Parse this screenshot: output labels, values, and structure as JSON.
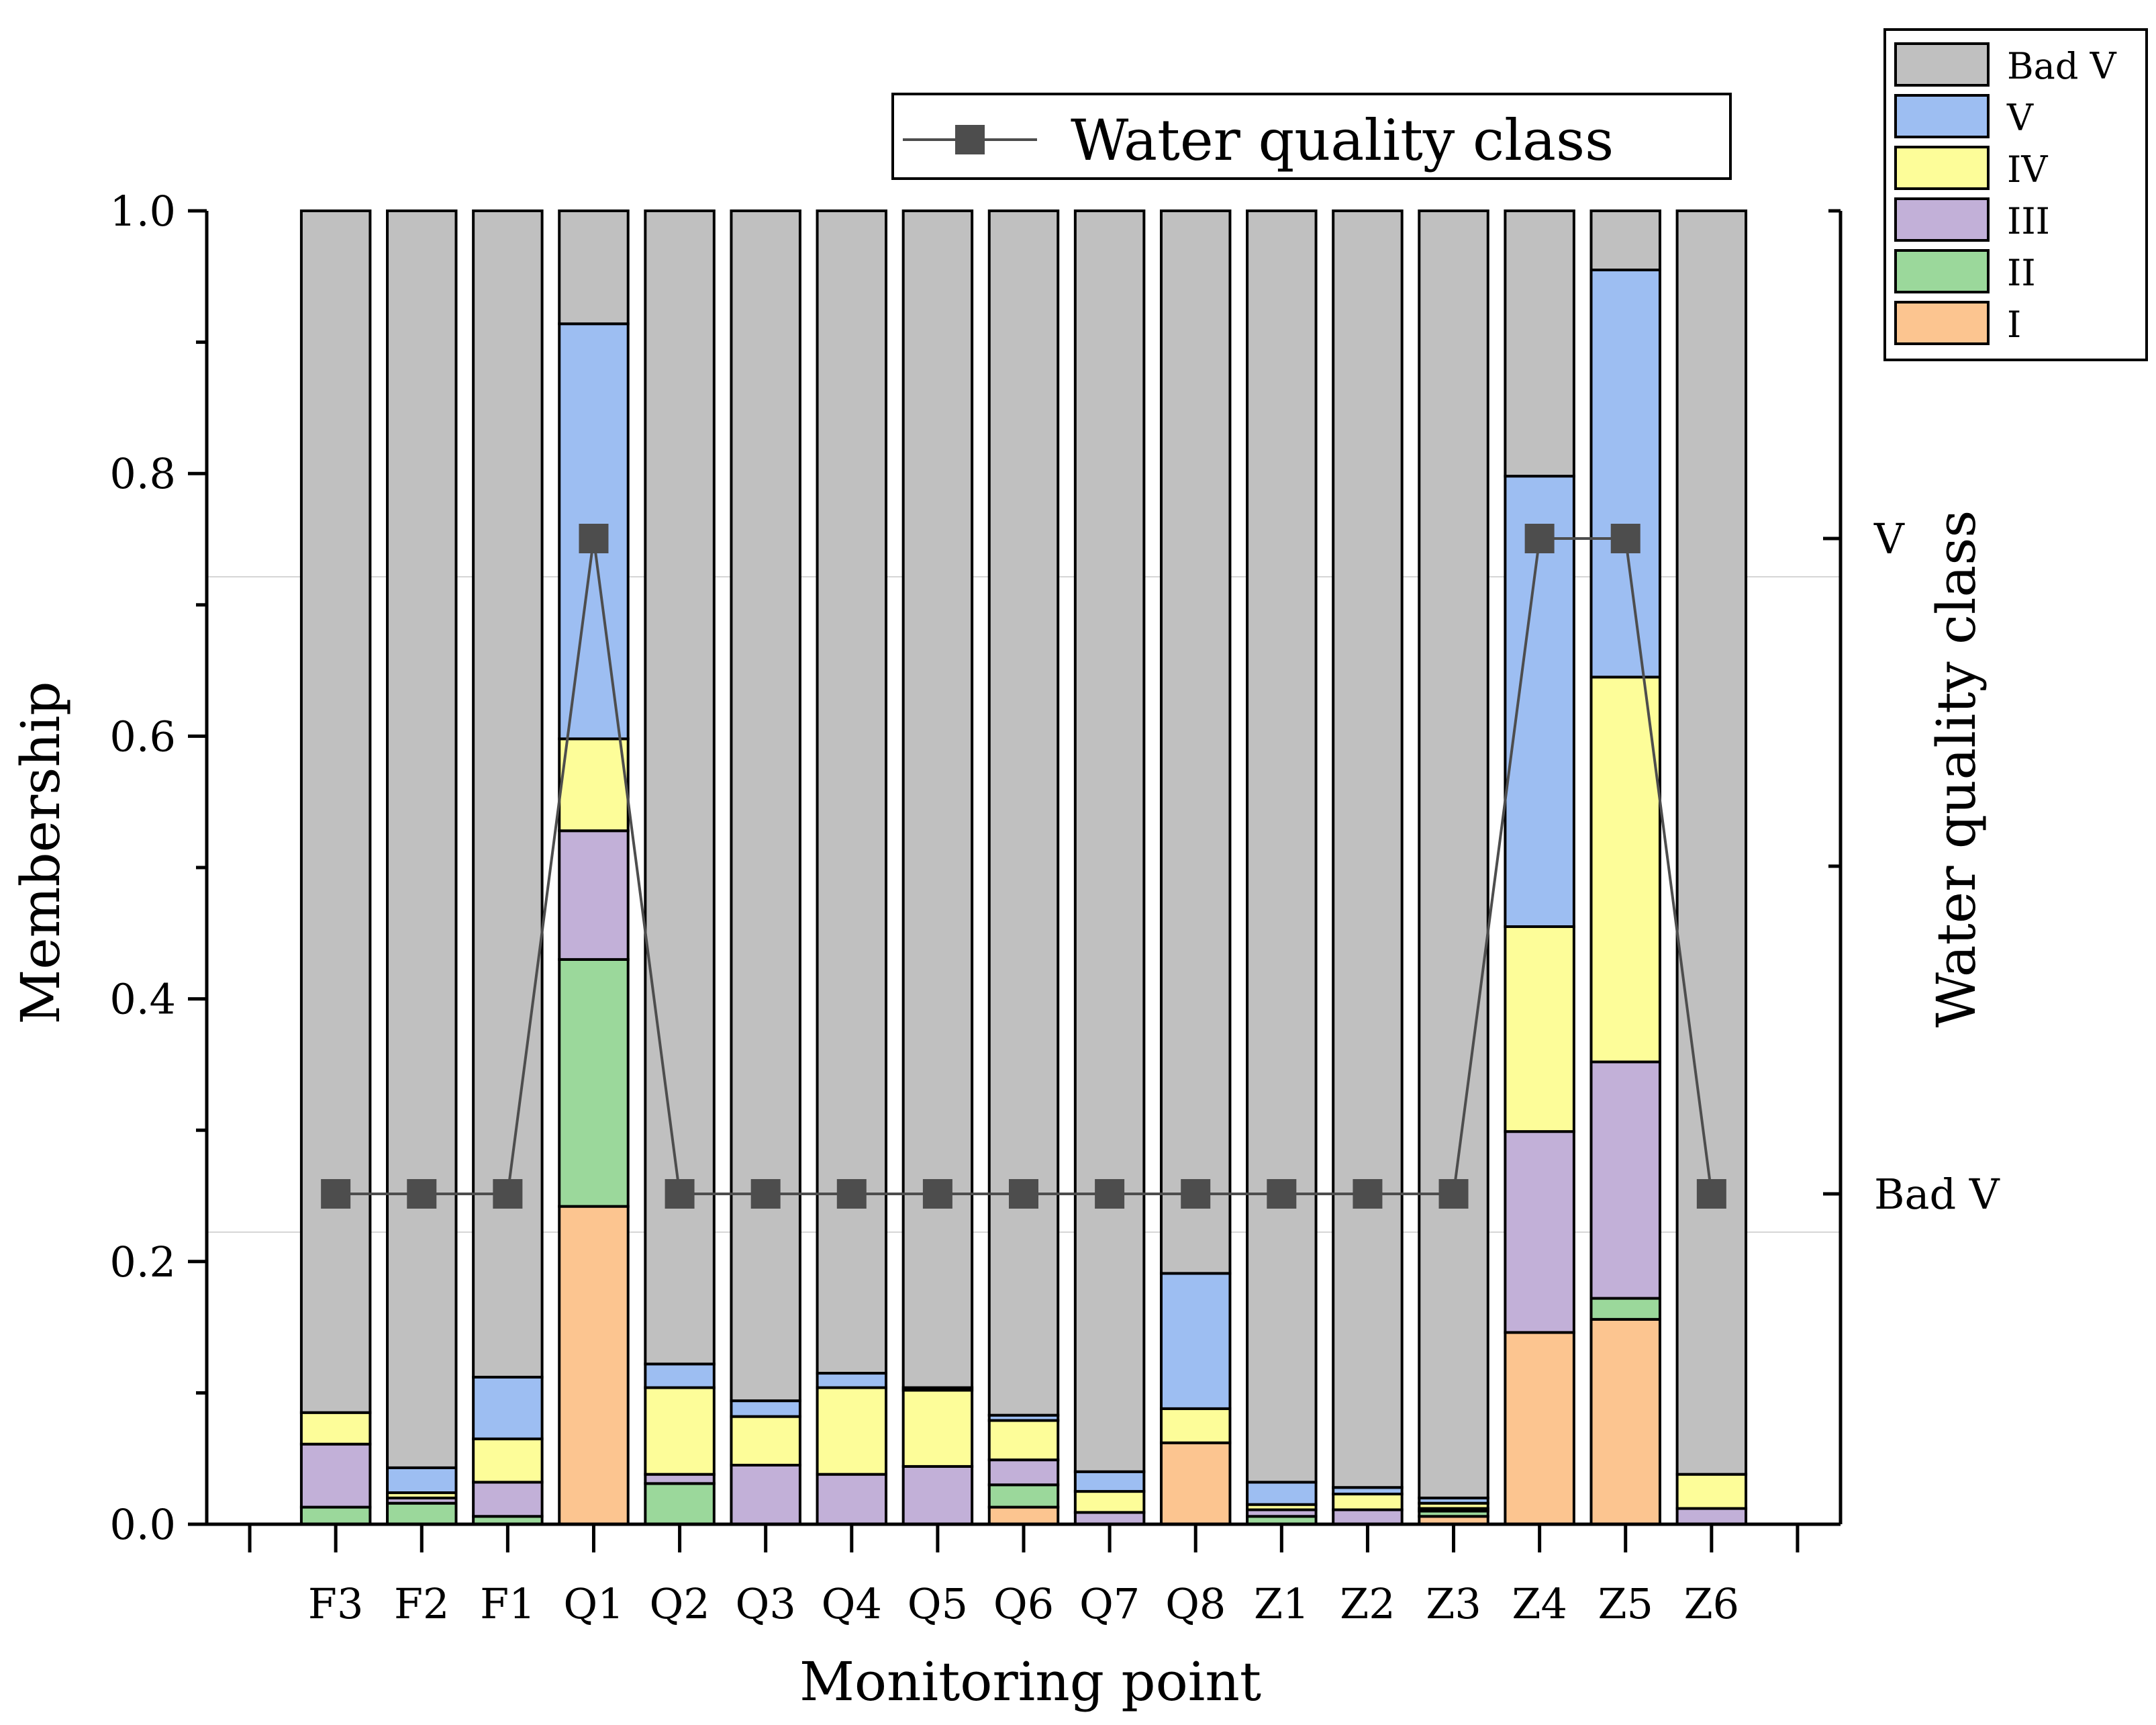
{
  "chart_data": {
    "type": "bar",
    "stacked": true,
    "categories": [
      "F3",
      "F2",
      "F1",
      "Q1",
      "Q2",
      "Q3",
      "Q4",
      "Q5",
      "Q6",
      "Q7",
      "Q8",
      "Z1",
      "Z2",
      "Z3",
      "Z4",
      "Z5",
      "Z6"
    ],
    "xlabel": "Monitoring point",
    "ylabel": "Membership",
    "ylabel_right": "Water quality class",
    "ylim": [
      0,
      1.0
    ],
    "yticks": [
      "0.0",
      "0.2",
      "0.4",
      "0.6",
      "0.8",
      "1.0"
    ],
    "right_ticks": [
      "V",
      "Bad V"
    ],
    "series": [
      {
        "name": "I",
        "color": "#fcc590",
        "values": [
          0,
          0,
          0,
          0.242,
          0,
          0,
          0,
          0,
          0.013,
          0,
          0.062,
          0,
          0,
          0.006,
          0.146,
          0.156,
          0
        ]
      },
      {
        "name": "II",
        "color": "#9bd89b",
        "values": [
          0.013,
          0.016,
          0.006,
          0.188,
          0.031,
          0,
          0,
          0,
          0.017,
          0,
          0,
          0.006,
          0,
          0.004,
          0,
          0.016,
          0
        ]
      },
      {
        "name": "III",
        "color": "#c2b0d8",
        "values": [
          0.048,
          0.004,
          0.026,
          0.098,
          0.007,
          0.045,
          0.038,
          0.044,
          0.019,
          0.009,
          0,
          0.005,
          0.011,
          0.002,
          0.153,
          0.18,
          0.012
        ]
      },
      {
        "name": "IV",
        "color": "#fdfd99",
        "values": [
          0.024,
          0.004,
          0.033,
          0.07,
          0.066,
          0.037,
          0.066,
          0.058,
          0.03,
          0.016,
          0.026,
          0.004,
          0.012,
          0.004,
          0.156,
          0.293,
          0.026
        ]
      },
      {
        "name": "V",
        "color": "#9dbef2",
        "values": [
          0,
          0.019,
          0.047,
          0.316,
          0.018,
          0.012,
          0.011,
          0.002,
          0.004,
          0.015,
          0.103,
          0.017,
          0.005,
          0.004,
          0.343,
          0.31,
          0
        ]
      },
      {
        "name": "Bad V",
        "color": "#c0c0c0",
        "values": [
          0.915,
          0.957,
          0.888,
          0.086,
          0.878,
          0.906,
          0.885,
          0.896,
          0.917,
          0.96,
          0.809,
          0.968,
          0.972,
          0.98,
          0.202,
          0.045,
          0.962
        ]
      }
    ],
    "line_series": {
      "name": "Water quality class",
      "color": "#4d4d4d",
      "values": [
        "Bad V",
        "Bad V",
        "Bad V",
        "V",
        "Bad V",
        "Bad V",
        "Bad V",
        "Bad V",
        "Bad V",
        "Bad V",
        "Bad V",
        "Bad V",
        "Bad V",
        "Bad V",
        "V",
        "V",
        "Bad V"
      ]
    },
    "legend_placement": "top-right"
  }
}
